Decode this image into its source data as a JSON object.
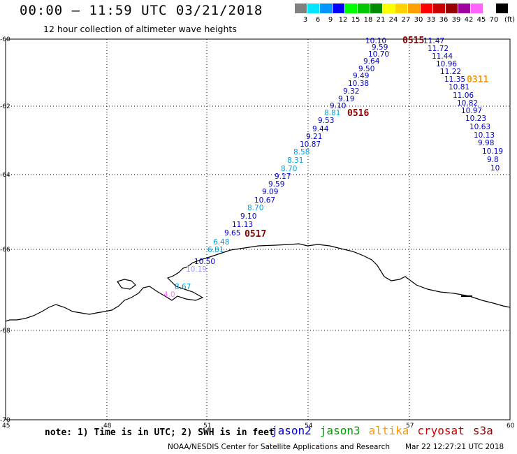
{
  "header": {
    "title": "00:00 – 11:59 UTC 03/21/2018",
    "subtitle": "12 hour collection of altimeter wave heights"
  },
  "legend": {
    "unit": "(ft)",
    "bins": [
      {
        "color": "#808080",
        "label": "3"
      },
      {
        "color": "#00e5ff",
        "label": "6"
      },
      {
        "color": "#0096ff",
        "label": "9"
      },
      {
        "color": "#0000ff",
        "label": "12"
      },
      {
        "color": "#00ff00",
        "label": "15"
      },
      {
        "color": "#00c800",
        "label": "18"
      },
      {
        "color": "#008c00",
        "label": "21"
      },
      {
        "color": "#ffff00",
        "label": "24"
      },
      {
        "color": "#ffd200",
        "label": "27"
      },
      {
        "color": "#ffa000",
        "label": "30"
      },
      {
        "color": "#ff0000",
        "label": "33"
      },
      {
        "color": "#c80000",
        "label": "36"
      },
      {
        "color": "#960000",
        "label": "39"
      },
      {
        "color": "#a000a0",
        "label": "42"
      },
      {
        "color": "#ff64ff",
        "label": "45"
      },
      {
        "color": "#ffffff",
        "label": "70"
      },
      {
        "color": "#000000",
        "label": ""
      }
    ]
  },
  "map": {
    "lat_labels": [
      "-60",
      "-62",
      "-64",
      "-66",
      "-68",
      "-70"
    ],
    "lon_labels": [
      "45",
      "48",
      "51",
      "54",
      "57",
      "60"
    ],
    "colors": {
      "dark_blue": "#0000c8",
      "light_blue": "#00a0e6",
      "time_red": "#8b0000",
      "time_orange": "#ff9900",
      "pink": "#ff80ff",
      "lavender": "#a0a0ff",
      "track_teal": "#33bbee"
    },
    "times": [
      {
        "text": "0515",
        "color": "time_red"
      },
      {
        "text": "0311",
        "color": "time_orange"
      },
      {
        "text": "0516",
        "color": "time_red"
      },
      {
        "text": "0517",
        "color": "time_red"
      }
    ],
    "track_a": [
      {
        "v": "10.10",
        "c": "dark_blue"
      },
      {
        "v": "9.59",
        "c": "dark_blue"
      },
      {
        "v": "10.70",
        "c": "dark_blue"
      },
      {
        "v": "9.64",
        "c": "dark_blue"
      },
      {
        "v": "9.50",
        "c": "dark_blue"
      },
      {
        "v": "9.49",
        "c": "dark_blue"
      },
      {
        "v": "10.38",
        "c": "dark_blue"
      },
      {
        "v": "9.32",
        "c": "dark_blue"
      },
      {
        "v": "9.19",
        "c": "dark_blue"
      },
      {
        "v": "9.10",
        "c": "dark_blue"
      },
      {
        "v": "8.81",
        "c": "light_blue"
      },
      {
        "v": "9.53",
        "c": "dark_blue"
      },
      {
        "v": "9.44",
        "c": "dark_blue"
      },
      {
        "v": "9.21",
        "c": "dark_blue"
      },
      {
        "v": "10.87",
        "c": "dark_blue"
      },
      {
        "v": "8.58",
        "c": "light_blue"
      },
      {
        "v": "8.31",
        "c": "light_blue"
      },
      {
        "v": "8.70",
        "c": "light_blue"
      },
      {
        "v": "9.17",
        "c": "dark_blue"
      },
      {
        "v": "9.59",
        "c": "dark_blue"
      },
      {
        "v": "9.09",
        "c": "dark_blue"
      },
      {
        "v": "10.67",
        "c": "dark_blue"
      },
      {
        "v": "8.70",
        "c": "light_blue"
      },
      {
        "v": "9.10",
        "c": "dark_blue"
      },
      {
        "v": "11.13",
        "c": "dark_blue"
      },
      {
        "v": "9.65",
        "c": "dark_blue"
      },
      {
        "v": "6.48",
        "c": "light_blue"
      },
      {
        "v": "6.81",
        "c": "light_blue"
      },
      {
        "v": "10.50",
        "c": "dark_blue"
      },
      {
        "v": "10.19",
        "c": "lavender"
      },
      {
        "v": "8.67",
        "c": "light_blue"
      },
      {
        "v": "4.0",
        "c": "pink"
      }
    ],
    "track_b": [
      {
        "v": "11.47",
        "c": "dark_blue"
      },
      {
        "v": "11.72",
        "c": "dark_blue"
      },
      {
        "v": "11.44",
        "c": "dark_blue"
      },
      {
        "v": "10.96",
        "c": "dark_blue"
      },
      {
        "v": "11.22",
        "c": "dark_blue"
      },
      {
        "v": "11.35",
        "c": "dark_blue"
      },
      {
        "v": "10.81",
        "c": "dark_blue"
      },
      {
        "v": "11.06",
        "c": "dark_blue"
      },
      {
        "v": "10.82",
        "c": "dark_blue"
      },
      {
        "v": "10.97",
        "c": "dark_blue"
      },
      {
        "v": "10.23",
        "c": "dark_blue"
      },
      {
        "v": "10.63",
        "c": "dark_blue"
      },
      {
        "v": "10.13",
        "c": "dark_blue"
      },
      {
        "v": "9.98",
        "c": "dark_blue"
      },
      {
        "v": "10.19",
        "c": "dark_blue"
      },
      {
        "v": "9.8",
        "c": "dark_blue"
      },
      {
        "v": "10",
        "c": "dark_blue"
      }
    ]
  },
  "footer": {
    "note": "note: 1) Time is in UTC; 2) SWH is in feet",
    "satellites": [
      {
        "name": "jason2",
        "color": "#0000e0"
      },
      {
        "name": "jason3",
        "color": "#00a000"
      },
      {
        "name": "altika",
        "color": "#ff9900"
      },
      {
        "name": "cryosat",
        "color": "#d00000"
      },
      {
        "name": "s3a",
        "color": "#a00000"
      }
    ],
    "credit": "NOAA/NESDIS Center for Satellite Applications and Research",
    "timestamp": "Mar 22 12:27:21 UTC 2018"
  }
}
